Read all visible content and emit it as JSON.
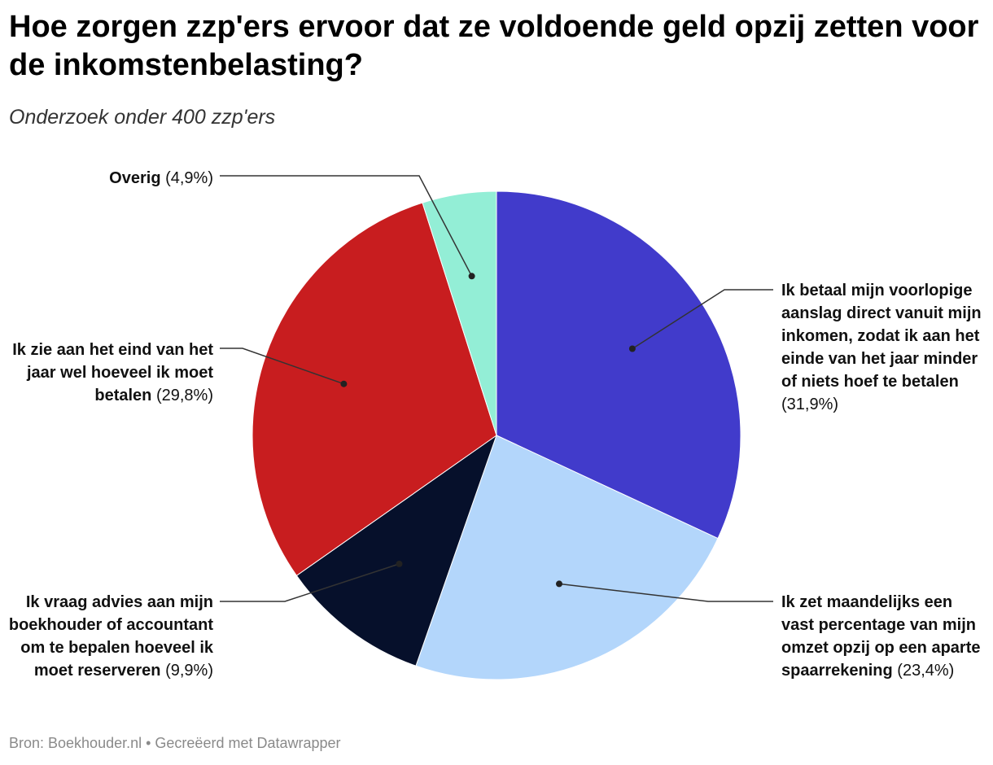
{
  "header": {
    "title": "Hoe zorgen zzp'ers ervoor dat ze voldoende geld opzij zetten voor de inkomstenbelasting?",
    "subtitle": "Onderzoek onder 400 zzp'ers"
  },
  "footer": {
    "source": "Bron: Boekhouder.nl • Gecreëerd met Datawrapper"
  },
  "chart_data": {
    "type": "pie",
    "title": "Hoe zorgen zzp'ers ervoor dat ze voldoende geld opzij zetten voor de inkomstenbelasting?",
    "subtitle": "Onderzoek onder 400 zzp'ers",
    "unit": "%",
    "slices": [
      {
        "label": "Ik betaal mijn voorlopige aanslag direct vanuit mijn inkomen, zodat ik aan het einde van het jaar minder of niets hoef te betalen",
        "value": 31.9,
        "value_label": "(31,9%)",
        "color": "#413bcb"
      },
      {
        "label": "Ik zet maandelijks een vast percentage van mijn omzet opzij op een aparte spaarrekening",
        "value": 23.4,
        "value_label": "(23,4%)",
        "color": "#b3d6fb"
      },
      {
        "label": "Ik vraag advies aan mijn boekhouder of accountant om te bepalen hoeveel ik moet reserveren",
        "value": 9.9,
        "value_label": "(9,9%)",
        "color": "#06102b"
      },
      {
        "label": "Ik zie aan het eind van het jaar wel hoeveel ik moet betalen",
        "value": 29.8,
        "value_label": "(29,8%)",
        "color": "#c81d1f"
      },
      {
        "label": "Overig",
        "value": 4.9,
        "value_label": "(4,9%)",
        "color": "#93eed6"
      }
    ]
  }
}
